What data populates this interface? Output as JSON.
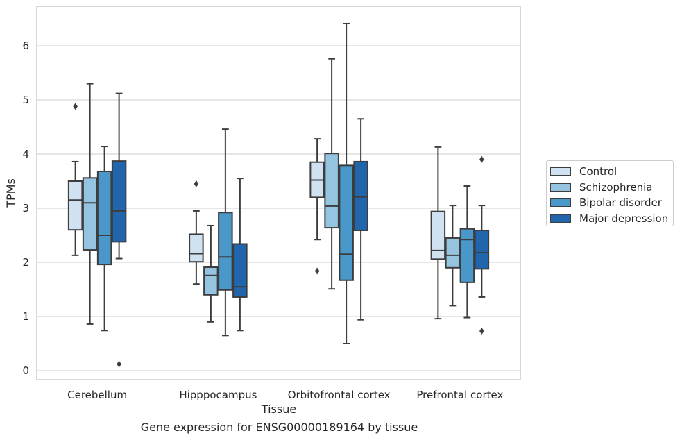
{
  "chart_data": {
    "type": "box",
    "xlabel": "Tissue",
    "ylabel": "TPMs",
    "ylim": [
      -0.2,
      6.9
    ],
    "yticks": [
      0,
      1,
      2,
      3,
      4,
      5,
      6
    ],
    "grid": "horizontal",
    "legend_position": "right",
    "categories": [
      "Cerebellum",
      "Hipppocampus",
      "Orbitofrontal cortex",
      "Prefrontal cortex"
    ],
    "series": [
      {
        "name": "Control",
        "color": "#d0e1f2",
        "boxes": [
          {
            "whisker_low": 2.13,
            "q1": 2.6,
            "median": 3.15,
            "q3": 3.5,
            "whisker_high": 3.86,
            "outliers": [
              4.88
            ]
          },
          {
            "whisker_low": 1.6,
            "q1": 2.01,
            "median": 2.16,
            "q3": 2.52,
            "whisker_high": 2.95,
            "outliers": [
              3.45
            ]
          },
          {
            "whisker_low": 2.42,
            "q1": 3.2,
            "median": 3.52,
            "q3": 3.85,
            "whisker_high": 4.28,
            "outliers": [
              1.84
            ]
          },
          {
            "whisker_low": 0.96,
            "q1": 2.06,
            "median": 2.22,
            "q3": 2.94,
            "whisker_high": 4.13,
            "outliers": []
          }
        ]
      },
      {
        "name": "Schizophrenia",
        "color": "#94c4df",
        "boxes": [
          {
            "whisker_low": 0.86,
            "q1": 2.23,
            "median": 3.1,
            "q3": 3.56,
            "whisker_high": 5.3,
            "outliers": []
          },
          {
            "whisker_low": 0.9,
            "q1": 1.4,
            "median": 1.76,
            "q3": 1.91,
            "whisker_high": 2.68,
            "outliers": []
          },
          {
            "whisker_low": 1.51,
            "q1": 2.64,
            "median": 3.04,
            "q3": 4.01,
            "whisker_high": 5.76,
            "outliers": []
          },
          {
            "whisker_low": 1.2,
            "q1": 1.9,
            "median": 2.13,
            "q3": 2.45,
            "whisker_high": 3.05,
            "outliers": []
          }
        ]
      },
      {
        "name": "Bipolar disorder",
        "color": "#4a98c9",
        "boxes": [
          {
            "whisker_low": 0.74,
            "q1": 1.96,
            "median": 2.5,
            "q3": 3.68,
            "whisker_high": 4.14,
            "outliers": []
          },
          {
            "whisker_low": 0.65,
            "q1": 1.49,
            "median": 2.1,
            "q3": 2.92,
            "whisker_high": 4.46,
            "outliers": []
          },
          {
            "whisker_low": 0.5,
            "q1": 1.67,
            "median": 2.15,
            "q3": 3.79,
            "whisker_high": 6.41,
            "outliers": []
          },
          {
            "whisker_low": 0.98,
            "q1": 1.63,
            "median": 2.42,
            "q3": 2.62,
            "whisker_high": 3.41,
            "outliers": []
          }
        ]
      },
      {
        "name": "Major depression",
        "color": "#2166ac",
        "boxes": [
          {
            "whisker_low": 2.07,
            "q1": 2.38,
            "median": 2.95,
            "q3": 3.87,
            "whisker_high": 5.12,
            "outliers": [
              0.12
            ]
          },
          {
            "whisker_low": 0.74,
            "q1": 1.36,
            "median": 1.55,
            "q3": 2.34,
            "whisker_high": 3.55,
            "outliers": []
          },
          {
            "whisker_low": 0.94,
            "q1": 2.59,
            "median": 3.21,
            "q3": 3.86,
            "whisker_high": 4.65,
            "outliers": []
          },
          {
            "whisker_low": 1.36,
            "q1": 1.88,
            "median": 2.18,
            "q3": 2.59,
            "whisker_high": 3.05,
            "outliers": [
              0.73,
              3.9
            ]
          }
        ]
      }
    ]
  },
  "caption": "Gene expression for ENSG00000189164 by tissue"
}
